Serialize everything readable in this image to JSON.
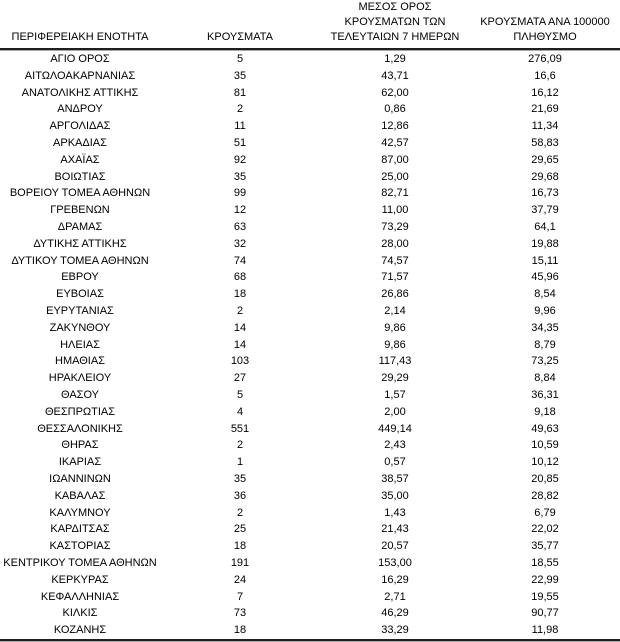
{
  "table": {
    "headers": {
      "region": "ΠΕΡΙΦΕΡΕΙΑΚΗ ΕΝΟΤΗΤΑ",
      "cases": "ΚΡΟΥΣΜΑΤΑ",
      "avg7": "ΜΕΣΟΣ ΟΡΟΣ\nΚΡΟΥΣΜΑΤΩΝ ΤΩΝ\nΤΕΛΕΥΤΑΙΩΝ 7 ΗΜΕΡΩΝ",
      "per100k": "ΚΡΟΥΣΜΑΤΑ ΑΝΑ 100000\nΠΛΗΘΥΣΜΟ"
    },
    "rows": [
      {
        "region": "ΑΓΙΟ ΟΡΟΣ",
        "cases": "5",
        "avg7": "1,29",
        "per100k": "276,09"
      },
      {
        "region": "ΑΙΤΩΛΟΑΚΑΡΝΑΝΙΑΣ",
        "cases": "35",
        "avg7": "43,71",
        "per100k": "16,6"
      },
      {
        "region": "ΑΝΑΤΟΛΙΚΗΣ ΑΤΤΙΚΗΣ",
        "cases": "81",
        "avg7": "62,00",
        "per100k": "16,12"
      },
      {
        "region": "ΑΝΔΡΟΥ",
        "cases": "2",
        "avg7": "0,86",
        "per100k": "21,69"
      },
      {
        "region": "ΑΡΓΟΛΙΔΑΣ",
        "cases": "11",
        "avg7": "12,86",
        "per100k": "11,34"
      },
      {
        "region": "ΑΡΚΑΔΙΑΣ",
        "cases": "51",
        "avg7": "42,57",
        "per100k": "58,83"
      },
      {
        "region": "ΑΧΑΪΑΣ",
        "cases": "92",
        "avg7": "87,00",
        "per100k": "29,65"
      },
      {
        "region": "ΒΟΙΩΤΙΑΣ",
        "cases": "35",
        "avg7": "25,00",
        "per100k": "29,68"
      },
      {
        "region": "ΒΟΡΕΙΟΥ ΤΟΜΕΑ ΑΘΗΝΩΝ",
        "cases": "99",
        "avg7": "82,71",
        "per100k": "16,73"
      },
      {
        "region": "ΓΡΕΒΕΝΩΝ",
        "cases": "12",
        "avg7": "11,00",
        "per100k": "37,79"
      },
      {
        "region": "ΔΡΑΜΑΣ",
        "cases": "63",
        "avg7": "73,29",
        "per100k": "64,1"
      },
      {
        "region": "ΔΥΤΙΚΗΣ ΑΤΤΙΚΗΣ",
        "cases": "32",
        "avg7": "28,00",
        "per100k": "19,88"
      },
      {
        "region": "ΔΥΤΙΚΟΥ ΤΟΜΕΑ ΑΘΗΝΩΝ",
        "cases": "74",
        "avg7": "74,57",
        "per100k": "15,11"
      },
      {
        "region": "ΕΒΡΟΥ",
        "cases": "68",
        "avg7": "71,57",
        "per100k": "45,96"
      },
      {
        "region": "ΕΥΒΟΙΑΣ",
        "cases": "18",
        "avg7": "26,86",
        "per100k": "8,54"
      },
      {
        "region": "ΕΥΡΥΤΑΝΙΑΣ",
        "cases": "2",
        "avg7": "2,14",
        "per100k": "9,96"
      },
      {
        "region": "ΖΑΚΥΝΘΟΥ",
        "cases": "14",
        "avg7": "9,86",
        "per100k": "34,35"
      },
      {
        "region": "ΗΛΕΙΑΣ",
        "cases": "14",
        "avg7": "9,86",
        "per100k": "8,79"
      },
      {
        "region": "ΗΜΑΘΙΑΣ",
        "cases": "103",
        "avg7": "117,43",
        "per100k": "73,25"
      },
      {
        "region": "ΗΡΑΚΛΕΙΟΥ",
        "cases": "27",
        "avg7": "29,29",
        "per100k": "8,84"
      },
      {
        "region": "ΘΑΣΟΥ",
        "cases": "5",
        "avg7": "1,57",
        "per100k": "36,31"
      },
      {
        "region": "ΘΕΣΠΡΩΤΙΑΣ",
        "cases": "4",
        "avg7": "2,00",
        "per100k": "9,18"
      },
      {
        "region": "ΘΕΣΣΑΛΟΝΙΚΗΣ",
        "cases": "551",
        "avg7": "449,14",
        "per100k": "49,63"
      },
      {
        "region": "ΘΗΡΑΣ",
        "cases": "2",
        "avg7": "2,43",
        "per100k": "10,59"
      },
      {
        "region": "ΙΚΑΡΙΑΣ",
        "cases": "1",
        "avg7": "0,57",
        "per100k": "10,12"
      },
      {
        "region": "ΙΩΑΝΝΙΝΩΝ",
        "cases": "35",
        "avg7": "38,57",
        "per100k": "20,85"
      },
      {
        "region": "ΚΑΒΑΛΑΣ",
        "cases": "36",
        "avg7": "35,00",
        "per100k": "28,82"
      },
      {
        "region": "ΚΑΛΥΜΝΟΥ",
        "cases": "2",
        "avg7": "1,43",
        "per100k": "6,79"
      },
      {
        "region": "ΚΑΡΔΙΤΣΑΣ",
        "cases": "25",
        "avg7": "21,43",
        "per100k": "22,02"
      },
      {
        "region": "ΚΑΣΤΟΡΙΑΣ",
        "cases": "18",
        "avg7": "20,57",
        "per100k": "35,77"
      },
      {
        "region": "ΚΕΝΤΡΙΚΟΥ ΤΟΜΕΑ ΑΘΗΝΩΝ",
        "cases": "191",
        "avg7": "153,00",
        "per100k": "18,55"
      },
      {
        "region": "ΚΕΡΚΥΡΑΣ",
        "cases": "24",
        "avg7": "16,29",
        "per100k": "22,99"
      },
      {
        "region": "ΚΕΦΑΛΛΗΝΙΑΣ",
        "cases": "7",
        "avg7": "2,71",
        "per100k": "19,55"
      },
      {
        "region": "ΚΙΛΚΙΣ",
        "cases": "73",
        "avg7": "46,29",
        "per100k": "90,77"
      },
      {
        "region": "ΚΟΖΑΝΗΣ",
        "cases": "18",
        "avg7": "33,29",
        "per100k": "11,98"
      }
    ],
    "style": {
      "rule_color_dark": "#1f1f1f",
      "rule_color_light": "#a8a8a8",
      "text_color": "#000000",
      "background": "#ffffff",
      "decimal_separator": ","
    }
  }
}
